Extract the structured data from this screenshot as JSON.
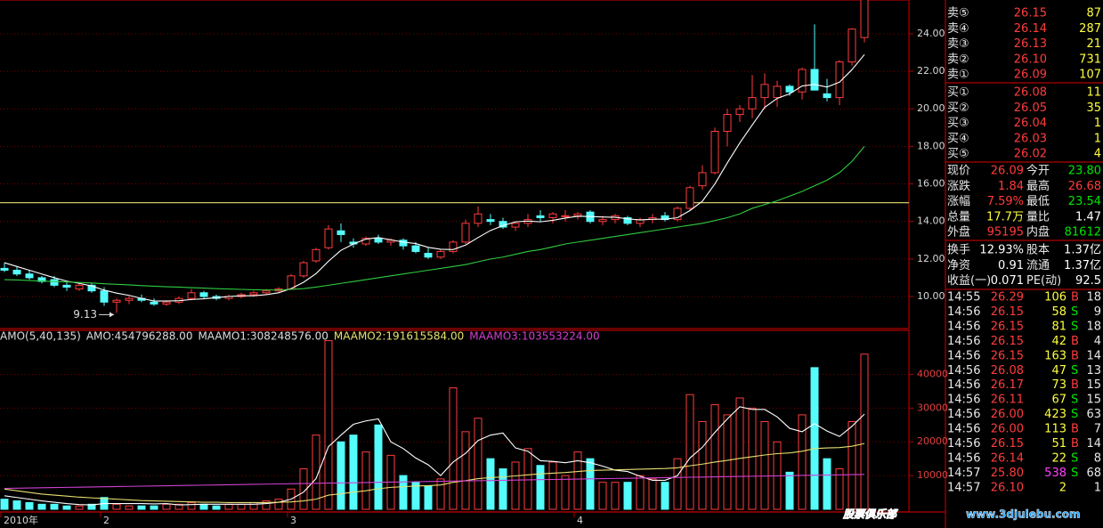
{
  "chart_data": [
    {
      "type": "candlestick",
      "categories": [
        "2010年",
        null,
        null,
        null,
        null,
        null,
        null,
        null,
        "2",
        null,
        null,
        null,
        null,
        null,
        null,
        null,
        null,
        null,
        null,
        null,
        null,
        null,
        null,
        "3",
        null,
        null,
        null,
        null,
        null,
        null,
        null,
        null,
        null,
        null,
        null,
        null,
        null,
        null,
        null,
        null,
        null,
        null,
        null,
        null,
        null,
        null,
        "4",
        null,
        null,
        null,
        null,
        null,
        null,
        null,
        null,
        null,
        null,
        null,
        null,
        null,
        null,
        null,
        null,
        null,
        null,
        null,
        null,
        null,
        null,
        null
      ],
      "open": [
        11.5,
        11.4,
        11.2,
        11.0,
        10.9,
        10.6,
        10.4,
        10.6,
        10.3,
        9.7,
        9.8,
        9.9,
        9.7,
        9.6,
        9.7,
        9.9,
        10.2,
        10.0,
        9.9,
        10.0,
        10.1,
        10.2,
        10.3,
        10.4,
        11.1,
        11.9,
        12.6,
        13.5,
        12.9,
        12.8,
        13.1,
        12.9,
        13.0,
        12.7,
        12.3,
        12.1,
        12.4,
        12.9,
        13.9,
        14.1,
        14.0,
        13.7,
        13.9,
        14.3,
        14.2,
        14.3,
        14.3,
        14.5,
        14.0,
        14.1,
        14.2,
        13.9,
        14.1,
        14.3,
        14.1,
        14.7,
        15.9,
        16.6,
        18.8,
        19.7,
        20.0,
        20.6,
        20.6,
        21.2,
        20.9,
        22.1,
        20.8,
        20.6,
        22.5,
        23.8
      ],
      "high": [
        11.8,
        11.6,
        11.4,
        11.1,
        11.1,
        10.8,
        10.7,
        10.7,
        10.5,
        9.9,
        10.0,
        10.1,
        9.9,
        9.8,
        10.0,
        10.4,
        10.3,
        10.1,
        10.1,
        10.2,
        10.3,
        10.4,
        10.5,
        11.2,
        11.9,
        12.6,
        13.8,
        13.9,
        13.1,
        13.2,
        13.3,
        13.1,
        13.1,
        12.9,
        12.6,
        12.5,
        13.0,
        14.1,
        14.8,
        14.4,
        14.2,
        14.0,
        14.4,
        14.6,
        14.5,
        14.6,
        14.5,
        14.6,
        14.3,
        14.4,
        14.3,
        14.2,
        14.4,
        14.5,
        14.8,
        15.9,
        17.0,
        19.0,
        20.0,
        20.2,
        21.8,
        21.9,
        21.5,
        21.3,
        22.2,
        24.5,
        21.6,
        22.6,
        24.3,
        26.68
      ],
      "low": [
        11.3,
        11.1,
        10.9,
        10.7,
        10.5,
        10.3,
        10.3,
        10.2,
        9.5,
        9.13,
        9.6,
        9.7,
        9.5,
        9.5,
        9.6,
        9.8,
        9.9,
        9.8,
        9.8,
        9.9,
        10.0,
        10.1,
        10.2,
        10.4,
        11.0,
        11.8,
        12.5,
        12.9,
        12.6,
        12.7,
        12.8,
        12.7,
        12.5,
        12.3,
        12.0,
        12.0,
        12.3,
        12.8,
        13.7,
        13.8,
        13.6,
        13.5,
        13.7,
        14.0,
        13.9,
        14.0,
        14.1,
        13.9,
        13.8,
        13.9,
        13.8,
        13.7,
        13.9,
        14.0,
        14.0,
        14.6,
        15.7,
        16.5,
        18.0,
        19.3,
        19.5,
        20.0,
        20.1,
        20.7,
        20.5,
        21.0,
        20.4,
        20.2,
        22.3,
        23.54
      ],
      "close": [
        11.4,
        11.2,
        11.0,
        10.8,
        10.6,
        10.5,
        10.6,
        10.3,
        9.7,
        9.8,
        9.9,
        9.8,
        9.6,
        9.7,
        9.9,
        10.2,
        10.0,
        9.9,
        10.0,
        10.1,
        10.2,
        10.3,
        10.4,
        11.1,
        11.8,
        12.5,
        13.6,
        13.3,
        12.8,
        13.1,
        12.9,
        13.0,
        12.7,
        12.4,
        12.1,
        12.4,
        12.9,
        13.9,
        14.4,
        14.0,
        13.7,
        13.9,
        14.1,
        14.2,
        14.4,
        14.3,
        14.4,
        14.0,
        14.1,
        14.3,
        13.9,
        14.1,
        14.2,
        14.1,
        14.7,
        15.8,
        16.6,
        18.8,
        19.7,
        20.0,
        20.6,
        21.3,
        21.2,
        20.9,
        22.1,
        21.0,
        20.6,
        22.5,
        24.25,
        26.09
      ],
      "up_color": "#ff3c3c",
      "down_color": "#54fcfc",
      "lines": [
        {
          "color": "#ffffff",
          "values": [
            11.8,
            11.6,
            11.4,
            11.2,
            11.0,
            10.82,
            10.7,
            10.56,
            10.34,
            10.18,
            10.06,
            9.9,
            9.76,
            9.76,
            9.78,
            9.84,
            9.88,
            9.94,
            10.0,
            10.04,
            10.04,
            10.1,
            10.2,
            10.42,
            10.76,
            11.22,
            11.88,
            12.46,
            12.8,
            13.06,
            13.14,
            13.02,
            12.9,
            12.82,
            12.62,
            12.52,
            12.5,
            12.74,
            13.14,
            13.52,
            13.78,
            13.98,
            14.02,
            13.98,
            14.06,
            14.18,
            14.28,
            14.26,
            14.24,
            14.22,
            14.14,
            14.08,
            14.12,
            14.12,
            14.2,
            14.58,
            15.08,
            16.0,
            17.12,
            18.18,
            19.14,
            20.08,
            20.56,
            20.8,
            21.22,
            21.3,
            21.16,
            21.42,
            22.09,
            22.89
          ]
        },
        {
          "color": "#2ecc40",
          "values": [
            10.9,
            10.88,
            10.85,
            10.82,
            10.8,
            10.78,
            10.75,
            10.72,
            10.68,
            10.65,
            10.62,
            10.58,
            10.55,
            10.52,
            10.5,
            10.47,
            10.45,
            10.42,
            10.4,
            10.38,
            10.36,
            10.35,
            10.35,
            10.38,
            10.42,
            10.5,
            10.6,
            10.7,
            10.8,
            10.9,
            11.0,
            11.1,
            11.2,
            11.3,
            11.4,
            11.5,
            11.6,
            11.7,
            11.85,
            12.0,
            12.1,
            12.25,
            12.4,
            12.5,
            12.65,
            12.8,
            12.9,
            13.0,
            13.1,
            13.2,
            13.3,
            13.4,
            13.5,
            13.6,
            13.7,
            13.8,
            13.9,
            14.05,
            14.2,
            14.4,
            14.7,
            14.9,
            15.1,
            15.35,
            15.6,
            15.9,
            16.2,
            16.6,
            17.2,
            18.0
          ]
        }
      ],
      "hline": {
        "value": 15.0,
        "color": "#c8c864"
      },
      "low_label": 9.13,
      "ylim": [
        8.34,
        25.8
      ],
      "yticks": [
        {
          "value": 10,
          "label": "10.00"
        },
        {
          "value": 12,
          "label": "12.00"
        },
        {
          "value": 14,
          "label": "14.00"
        },
        {
          "value": 16,
          "label": "16.00"
        },
        {
          "value": 18,
          "label": "18.00"
        },
        {
          "value": 20,
          "label": "20.00"
        },
        {
          "value": 22,
          "label": "22.00"
        },
        {
          "value": 24,
          "label": "24.00"
        }
      ],
      "grid": true
    },
    {
      "type": "volume",
      "values": [
        3000,
        2500,
        2000,
        1500,
        1500,
        1000,
        1000,
        1500,
        3500,
        1500,
        1000,
        1000,
        1000,
        1500,
        1500,
        2000,
        1500,
        1000,
        1500,
        1500,
        2000,
        2500,
        3000,
        6000,
        12000,
        22000,
        50000,
        20000,
        22000,
        17000,
        25000,
        16000,
        10000,
        8000,
        7000,
        9000,
        36000,
        23000,
        27000,
        15000,
        12000,
        14000,
        18000,
        13000,
        14000,
        10000,
        17000,
        15000,
        8000,
        8000,
        8000,
        10000,
        9000,
        8000,
        15000,
        34000,
        26000,
        31000,
        28000,
        33000,
        30000,
        26000,
        20000,
        11000,
        28000,
        42000,
        15000,
        12000,
        26000,
        46000
      ],
      "series": [
        {
          "color": "#ffffff",
          "values": [
            4000,
            3500,
            3000,
            2500,
            2100,
            1700,
            1400,
            1300,
            1700,
            1700,
            1700,
            1700,
            1600,
            1700,
            1300,
            1400,
            1500,
            1500,
            1500,
            1500,
            1500,
            1700,
            2100,
            3000,
            5100,
            9100,
            18600,
            22000,
            25200,
            26200,
            26800,
            20000,
            18000,
            15200,
            13200,
            10000,
            14000,
            16600,
            20400,
            22000,
            22600,
            18200,
            17200,
            14400,
            14200,
            13800,
            14400,
            13800,
            12800,
            11600,
            11200,
            9800,
            8600,
            8600,
            10000,
            15200,
            18400,
            22800,
            26800,
            30400,
            29600,
            29600,
            27400,
            24000,
            23000,
            25400,
            23200,
            21600,
            24600,
            28200
          ]
        },
        {
          "color": "#e8e070",
          "values": [
            6000,
            5500,
            5000,
            4500,
            4200,
            3900,
            3600,
            3400,
            3200,
            3000,
            2800,
            2600,
            2500,
            2400,
            2300,
            2200,
            2100,
            2100,
            2000,
            2000,
            2000,
            2000,
            2100,
            2200,
            2500,
            3000,
            4200,
            4600,
            5100,
            5500,
            6100,
            6500,
            6700,
            6900,
            7000,
            7200,
            8000,
            8500,
            9100,
            9400,
            9600,
            9900,
            10200,
            10500,
            10700,
            10900,
            11200,
            11500,
            11600,
            11700,
            11800,
            11900,
            12000,
            12100,
            12300,
            12900,
            13400,
            14000,
            14500,
            15100,
            15600,
            16100,
            16500,
            16700,
            17200,
            18000,
            18200,
            18300,
            18700,
            19500
          ]
        },
        {
          "color": "#d040d0",
          "values": [
            6200,
            6260,
            6320,
            6380,
            6440,
            6500,
            6560,
            6620,
            6680,
            6740,
            6800,
            6860,
            6920,
            6980,
            7040,
            7100,
            7160,
            7220,
            7280,
            7340,
            7400,
            7460,
            7520,
            7580,
            7640,
            7700,
            7760,
            7820,
            7880,
            7940,
            8000,
            8060,
            8120,
            8180,
            8240,
            8300,
            8360,
            8420,
            8480,
            8540,
            8600,
            8660,
            8720,
            8780,
            8840,
            8900,
            8960,
            9020,
            9080,
            9140,
            9200,
            9260,
            9320,
            9380,
            9440,
            9500,
            9560,
            9620,
            9680,
            9740,
            9800,
            9860,
            9920,
            9980,
            10040,
            10100,
            10160,
            10220,
            10280,
            10340
          ]
        }
      ],
      "legend": [
        {
          "text": "AMO(5,40,135)",
          "color": "#dddddd"
        },
        {
          "text": "AMO:454796288.00",
          "color": "#dddddd"
        },
        {
          "text": "MAAMO1:308248576.00",
          "color": "#dddddd"
        },
        {
          "text": "MAAMO2:191615584.00",
          "color": "#e8e070"
        },
        {
          "text": "MAAMO3:103553224.00",
          "color": "#d040d0"
        }
      ],
      "ylim": [
        0,
        52000
      ],
      "yticks": [
        10000,
        20000,
        30000,
        40000
      ],
      "grid": true
    }
  ],
  "order_book": {
    "asks": [
      {
        "label": "卖⑤",
        "price": "26.15",
        "volume": "87"
      },
      {
        "label": "卖④",
        "price": "26.14",
        "volume": "287"
      },
      {
        "label": "卖③",
        "price": "26.13",
        "volume": "21"
      },
      {
        "label": "卖②",
        "price": "26.10",
        "volume": "731"
      },
      {
        "label": "卖①",
        "price": "26.09",
        "volume": "107"
      }
    ],
    "bids": [
      {
        "label": "买①",
        "price": "26.08",
        "volume": "11"
      },
      {
        "label": "买②",
        "price": "26.05",
        "volume": "35"
      },
      {
        "label": "买③",
        "price": "26.04",
        "volume": "1"
      },
      {
        "label": "买④",
        "price": "26.03",
        "volume": "1"
      },
      {
        "label": "买⑤",
        "price": "26.02",
        "volume": "4"
      }
    ]
  },
  "quote": {
    "rows": [
      [
        {
          "label": "现价",
          "value": "26.09",
          "color": "#ff3c3c"
        },
        {
          "label": "今开",
          "value": "23.80",
          "color": "#00e600"
        }
      ],
      [
        {
          "label": "涨跌",
          "value": "1.84",
          "color": "#ff3c3c"
        },
        {
          "label": "最高",
          "value": "26.68",
          "color": "#ff3c3c"
        }
      ],
      [
        {
          "label": "涨幅",
          "value": "7.59%",
          "color": "#ff3c3c"
        },
        {
          "label": "最低",
          "value": "23.54",
          "color": "#00e600"
        }
      ],
      [
        {
          "label": "总量",
          "value": "17.7万",
          "color": "#ffff40"
        },
        {
          "label": "量比",
          "value": "1.47",
          "color": "#ffffff"
        }
      ],
      [
        {
          "label": "外盘",
          "value": "95195",
          "color": "#ff3c3c"
        },
        {
          "label": "内盘",
          "value": "81612",
          "color": "#00e600"
        }
      ]
    ],
    "finance": [
      [
        {
          "label": "换手",
          "value": "12.93%",
          "color": "#ffffff"
        },
        {
          "label": "股本",
          "value": "1.37亿",
          "color": "#ffffff"
        }
      ],
      [
        {
          "label": "净资",
          "value": "0.91",
          "color": "#ffffff"
        },
        {
          "label": "流通",
          "value": "1.37亿",
          "color": "#ffffff"
        }
      ],
      [
        {
          "label": "收益(一)",
          "value": "0.071",
          "color": "#ffffff"
        },
        {
          "label": "PE(动)",
          "value": "92.5",
          "color": "#ffffff"
        }
      ]
    ]
  },
  "trades": [
    {
      "time": "14:55",
      "price": "26.29",
      "volume": "106",
      "side": "B",
      "count": "18"
    },
    {
      "time": "14:56",
      "price": "26.15",
      "volume": "58",
      "side": "S",
      "count": "9"
    },
    {
      "time": "14:56",
      "price": "26.15",
      "volume": "81",
      "side": "S",
      "count": "18"
    },
    {
      "time": "14:56",
      "price": "26.15",
      "volume": "42",
      "side": "B",
      "count": "4"
    },
    {
      "time": "14:56",
      "price": "26.15",
      "volume": "163",
      "side": "B",
      "count": "14"
    },
    {
      "time": "14:56",
      "price": "26.08",
      "volume": "47",
      "side": "S",
      "count": "13"
    },
    {
      "time": "14:56",
      "price": "26.17",
      "volume": "73",
      "side": "B",
      "count": "15"
    },
    {
      "time": "14:56",
      "price": "26.11",
      "volume": "67",
      "side": "S",
      "count": "15"
    },
    {
      "time": "14:56",
      "price": "26.00",
      "volume": "423",
      "side": "S",
      "count": "63"
    },
    {
      "time": "14:56",
      "price": "26.00",
      "volume": "113",
      "side": "B",
      "count": "7"
    },
    {
      "time": "14:56",
      "price": "26.15",
      "volume": "51",
      "side": "B",
      "count": "14"
    },
    {
      "time": "14:56",
      "price": "26.14",
      "volume": "22",
      "side": "S",
      "count": "8"
    },
    {
      "time": "14:57",
      "price": "25.80",
      "volume": "538",
      "side": "S",
      "count": "68",
      "volume_color": "#ff40ff"
    },
    {
      "time": "14:57",
      "price": "26.10",
      "volume": "2",
      "count": "1"
    }
  ],
  "watermark": {
    "brand": "股票俱乐部",
    "url": "www.3djulebu.com"
  }
}
